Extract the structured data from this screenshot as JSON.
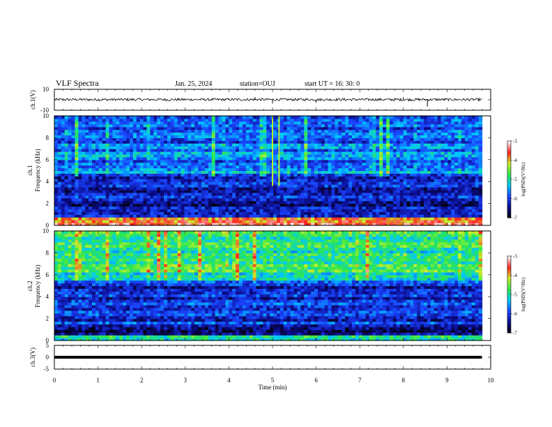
{
  "header": {
    "title": "VLF Spectra",
    "date": "Jan. 25, 2024",
    "station": "station=OUJ",
    "start": "start  UT =   16: 30: 0"
  },
  "chart_data": [
    {
      "type": "line",
      "ylabel": "ch.1(V)",
      "ylim": [
        -10,
        10
      ],
      "y_ticks": [
        "10",
        "-10"
      ],
      "xlim": [
        0,
        10
      ],
      "description_values": {
        "baseline": 0.2,
        "noise_amplitude": 1.2
      },
      "spikes": [
        [
          5.0,
          -3.5
        ],
        [
          6.0,
          -2.8
        ],
        [
          8.55,
          -6.5
        ],
        [
          8.0,
          2.6
        ],
        [
          4.6,
          2.4
        ]
      ]
    },
    {
      "type": "heatmap",
      "ylabel_line1": "ch.1",
      "ylabel_line2": "Frequency  (kHz)",
      "ylim": [
        0,
        10
      ],
      "y_ticks": [
        "0",
        "2",
        "4",
        "6",
        "8",
        "10"
      ],
      "xlim": [
        0,
        10
      ],
      "colorbar": {
        "label": "log(PSD)(V²/Hz)",
        "ticks": [
          "-3",
          "-4",
          "-5",
          "-6",
          "-7"
        ],
        "range": [
          -7,
          -3
        ],
        "colors": [
          "#000000",
          "#0b0b8a",
          "#1a44ff",
          "#00c8ff",
          "#2ee84a",
          "#c8f02c",
          "#ff2020",
          "#ffffff"
        ]
      },
      "description": {
        "upper_band_kHz": [
          4.6,
          10
        ],
        "upper_band_level": -5.7,
        "middle_band_kHz": [
          1.0,
          4.6
        ],
        "middle_band_level": -6.3,
        "lowest_band_kHz": [
          0,
          0.8
        ],
        "lowest_band_level": -3.6,
        "strong_vertical_lines_min": [
          5.0,
          5.15
        ]
      }
    },
    {
      "type": "heatmap",
      "ylabel_line1": "ch.2",
      "ylabel_line2": "Frequency  (kHz)",
      "ylim": [
        0,
        10
      ],
      "y_ticks": [
        "0",
        "2",
        "4",
        "6",
        "8",
        "10"
      ],
      "xlim": [
        0,
        10
      ],
      "colorbar": {
        "label": "log(PSD)(V²/Hz)",
        "ticks": [
          "-3",
          "-4",
          "-5",
          "-6",
          "-7"
        ],
        "range": [
          -7,
          -3
        ],
        "colors": [
          "#000000",
          "#0b0b8a",
          "#1a44ff",
          "#00c8ff",
          "#2ee84a",
          "#c8f02c",
          "#ff2020",
          "#ffffff"
        ]
      },
      "description": {
        "upper_band_kHz": [
          5.5,
          10
        ],
        "upper_band_level": -4.9,
        "middle_band_kHz": [
          1.0,
          5.5
        ],
        "middle_band_level": -6.1,
        "lowest_band_kHz": [
          0,
          0.6
        ],
        "lowest_band_level": -5.0
      }
    },
    {
      "type": "line",
      "ylabel": "ch.3(V)",
      "ylim": [
        -5,
        5
      ],
      "y_ticks": [
        "5",
        "0",
        "-5"
      ],
      "xlim": [
        0,
        10
      ],
      "x": [
        0,
        9.8
      ],
      "y": [
        0,
        0
      ]
    }
  ],
  "x_axis": {
    "label": "Time  (min)",
    "ticks": [
      "0",
      "1",
      "2",
      "3",
      "4",
      "5",
      "6",
      "7",
      "8",
      "9",
      "10"
    ],
    "range": [
      0,
      10
    ],
    "data_end": 9.8
  }
}
